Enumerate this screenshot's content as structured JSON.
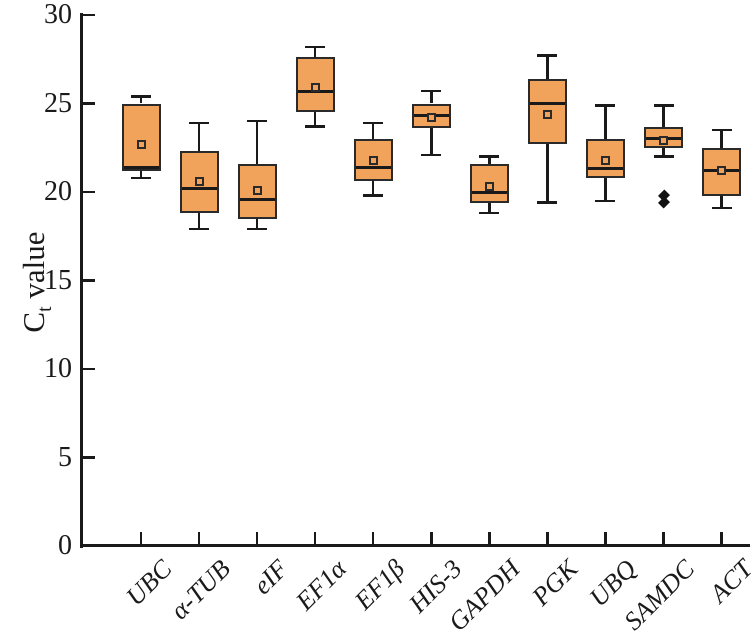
{
  "figure": {
    "background": "#ffffff",
    "box_fill": "#f1a35c",
    "box_border": "#2a2a2a",
    "line_color": "#1a1a1a",
    "outlier_color": "#111111"
  },
  "chart_data": {
    "type": "box",
    "title": "",
    "ylabel": "Ct value",
    "ylabel_parts": {
      "main": "C",
      "sub": "t",
      "rest": " value"
    },
    "xlabel": "",
    "ylim": [
      0,
      30
    ],
    "yticks": [
      0,
      5,
      10,
      15,
      20,
      25,
      30
    ],
    "grid": "off",
    "legend": "none",
    "categories": [
      "UBC",
      "α-TUB",
      "eIF",
      "EF1α",
      "EF1β",
      "HIS-3",
      "GAPDH",
      "PGK",
      "UBQ",
      "SAMDC",
      "ACT"
    ],
    "series": [
      {
        "name": "UBC",
        "whisker_low": 20.8,
        "q1": 21.2,
        "median": 21.4,
        "q3": 25.0,
        "whisker_high": 25.4,
        "mean": 22.7,
        "outliers": []
      },
      {
        "name": "α-TUB",
        "whisker_low": 17.9,
        "q1": 18.8,
        "median": 20.2,
        "q3": 22.3,
        "whisker_high": 23.9,
        "mean": 20.6,
        "outliers": []
      },
      {
        "name": "eIF",
        "whisker_low": 17.9,
        "q1": 18.5,
        "median": 19.6,
        "q3": 21.6,
        "whisker_high": 24.0,
        "mean": 20.1,
        "outliers": []
      },
      {
        "name": "EF1α",
        "whisker_low": 23.7,
        "q1": 24.5,
        "median": 25.7,
        "q3": 27.6,
        "whisker_high": 28.2,
        "mean": 25.9,
        "outliers": []
      },
      {
        "name": "EF1β",
        "whisker_low": 19.8,
        "q1": 20.6,
        "median": 21.4,
        "q3": 23.0,
        "whisker_high": 23.9,
        "mean": 21.8,
        "outliers": []
      },
      {
        "name": "HIS-3",
        "whisker_low": 22.1,
        "q1": 23.6,
        "median": 24.3,
        "q3": 25.0,
        "whisker_high": 25.7,
        "mean": 24.2,
        "outliers": []
      },
      {
        "name": "GAPDH",
        "whisker_low": 18.8,
        "q1": 19.4,
        "median": 20.0,
        "q3": 21.6,
        "whisker_high": 22.0,
        "mean": 20.3,
        "outliers": []
      },
      {
        "name": "PGK",
        "whisker_low": 19.4,
        "q1": 22.7,
        "median": 25.0,
        "q3": 26.4,
        "whisker_high": 27.7,
        "mean": 24.4,
        "outliers": []
      },
      {
        "name": "UBQ",
        "whisker_low": 19.5,
        "q1": 20.8,
        "median": 21.3,
        "q3": 23.0,
        "whisker_high": 24.9,
        "mean": 21.8,
        "outliers": []
      },
      {
        "name": "SAMDC",
        "whisker_low": 22.0,
        "q1": 22.5,
        "median": 23.0,
        "q3": 23.7,
        "whisker_high": 24.9,
        "mean": 22.9,
        "outliers": [
          19.8,
          19.4
        ]
      },
      {
        "name": "ACT",
        "whisker_low": 19.1,
        "q1": 19.8,
        "median": 21.2,
        "q3": 22.5,
        "whisker_high": 23.5,
        "mean": 21.2,
        "outliers": []
      }
    ]
  }
}
